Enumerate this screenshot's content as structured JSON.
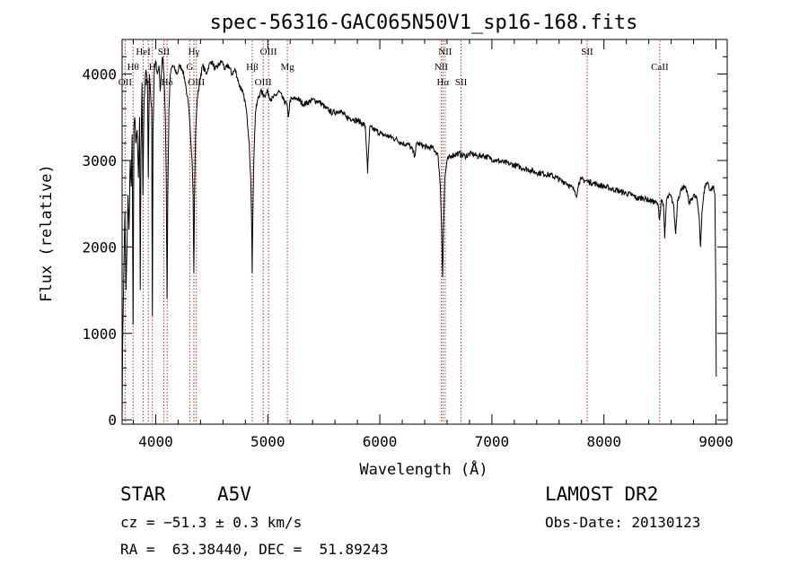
{
  "chart_data": {
    "type": "line",
    "title": "spec-56316-GAC065N50V1_sp16-168.fits",
    "xlabel": "Wavelength (Å)",
    "ylabel": "Flux (relative)",
    "xlim": [
      3700,
      9100
    ],
    "ylim": [
      -50,
      4400
    ],
    "xticks": [
      4000,
      5000,
      6000,
      7000,
      8000,
      9000
    ],
    "yticks": [
      0,
      1000,
      2000,
      3000,
      4000
    ],
    "xtick_labels": [
      "4000",
      "5000",
      "6000",
      "7000",
      "8000",
      "9000"
    ],
    "ytick_labels": [
      "0",
      "1000",
      "2000",
      "3000",
      "4000"
    ],
    "grid": false,
    "line_color": "#000000",
    "marker_color": "#b03030",
    "spectrum_knots": [
      [
        3700,
        0
      ],
      [
        3705,
        900
      ],
      [
        3715,
        1700
      ],
      [
        3725,
        2400
      ],
      [
        3735,
        1500
      ],
      [
        3745,
        2100
      ],
      [
        3752,
        2600
      ],
      [
        3762,
        2200
      ],
      [
        3772,
        3000
      ],
      [
        3782,
        2700
      ],
      [
        3790,
        3300
      ],
      [
        3798,
        1100
      ],
      [
        3806,
        3400
      ],
      [
        3814,
        3500
      ],
      [
        3822,
        3200
      ],
      [
        3834,
        3350
      ],
      [
        3846,
        2800
      ],
      [
        3856,
        3500
      ],
      [
        3862,
        1500
      ],
      [
        3868,
        3100
      ],
      [
        3878,
        3900
      ],
      [
        3886,
        2600
      ],
      [
        3896,
        3700
      ],
      [
        3912,
        4050
      ],
      [
        3926,
        3900
      ],
      [
        3934,
        2800
      ],
      [
        3944,
        4000
      ],
      [
        3956,
        3700
      ],
      [
        3964,
        3600
      ],
      [
        3970,
        1200
      ],
      [
        3976,
        3300
      ],
      [
        3986,
        4000
      ],
      [
        4000,
        4150
      ],
      [
        4016,
        4000
      ],
      [
        4030,
        4100
      ],
      [
        4040,
        3800
      ],
      [
        4060,
        4200
      ],
      [
        4074,
        4000
      ],
      [
        4086,
        3500
      ],
      [
        4094,
        2800
      ],
      [
        4101,
        1400
      ],
      [
        4108,
        2600
      ],
      [
        4118,
        3600
      ],
      [
        4130,
        4000
      ],
      [
        4150,
        4100
      ],
      [
        4170,
        4050
      ],
      [
        4190,
        4000
      ],
      [
        4215,
        4100
      ],
      [
        4240,
        4050
      ],
      [
        4265,
        3900
      ],
      [
        4280,
        3750
      ],
      [
        4295,
        3600
      ],
      [
        4310,
        3300
      ],
      [
        4325,
        3000
      ],
      [
        4334,
        2600
      ],
      [
        4340,
        1700
      ],
      [
        4346,
        2500
      ],
      [
        4355,
        3300
      ],
      [
        4370,
        3700
      ],
      [
        4395,
        3950
      ],
      [
        4420,
        4100
      ],
      [
        4450,
        4000
      ],
      [
        4475,
        4100
      ],
      [
        4500,
        4150
      ],
      [
        4530,
        4050
      ],
      [
        4560,
        4100
      ],
      [
        4590,
        4150
      ],
      [
        4620,
        4050
      ],
      [
        4650,
        4100
      ],
      [
        4680,
        4000
      ],
      [
        4710,
        4050
      ],
      [
        4740,
        3900
      ],
      [
        4770,
        3800
      ],
      [
        4795,
        3700
      ],
      [
        4815,
        3500
      ],
      [
        4835,
        3200
      ],
      [
        4850,
        2700
      ],
      [
        4858,
        2100
      ],
      [
        4861,
        1700
      ],
      [
        4865,
        2200
      ],
      [
        4875,
        3000
      ],
      [
        4890,
        3550
      ],
      [
        4910,
        3700
      ],
      [
        4935,
        3800
      ],
      [
        4970,
        3750
      ],
      [
        5000,
        3800
      ],
      [
        5030,
        3700
      ],
      [
        5070,
        3750
      ],
      [
        5100,
        3800
      ],
      [
        5140,
        3700
      ],
      [
        5170,
        3650
      ],
      [
        5183,
        3500
      ],
      [
        5200,
        3700
      ],
      [
        5260,
        3720
      ],
      [
        5320,
        3650
      ],
      [
        5400,
        3700
      ],
      [
        5460,
        3680
      ],
      [
        5520,
        3600
      ],
      [
        5580,
        3550
      ],
      [
        5640,
        3580
      ],
      [
        5700,
        3500
      ],
      [
        5760,
        3480
      ],
      [
        5820,
        3450
      ],
      [
        5870,
        3400
      ],
      [
        5885,
        3050
      ],
      [
        5891,
        2850
      ],
      [
        5897,
        3050
      ],
      [
        5910,
        3380
      ],
      [
        5960,
        3350
      ],
      [
        6020,
        3300
      ],
      [
        6080,
        3280
      ],
      [
        6140,
        3250
      ],
      [
        6200,
        3200
      ],
      [
        6260,
        3180
      ],
      [
        6300,
        3100
      ],
      [
        6310,
        3050
      ],
      [
        6330,
        3200
      ],
      [
        6370,
        3180
      ],
      [
        6420,
        3150
      ],
      [
        6470,
        3150
      ],
      [
        6500,
        3100
      ],
      [
        6520,
        3050
      ],
      [
        6540,
        2700
      ],
      [
        6552,
        2200
      ],
      [
        6560,
        1650
      ],
      [
        6568,
        2200
      ],
      [
        6580,
        2800
      ],
      [
        6600,
        3000
      ],
      [
        6640,
        3060
      ],
      [
        6700,
        3080
      ],
      [
        6760,
        3050
      ],
      [
        6820,
        3080
      ],
      [
        6870,
        3050
      ],
      [
        6920,
        3060
      ],
      [
        6980,
        3030
      ],
      [
        7040,
        3000
      ],
      [
        7100,
        2980
      ],
      [
        7160,
        2960
      ],
      [
        7220,
        2940
      ],
      [
        7280,
        2910
      ],
      [
        7340,
        2890
      ],
      [
        7400,
        2860
      ],
      [
        7460,
        2850
      ],
      [
        7520,
        2830
      ],
      [
        7580,
        2800
      ],
      [
        7620,
        2760
      ],
      [
        7660,
        2750
      ],
      [
        7700,
        2700
      ],
      [
        7740,
        2650
      ],
      [
        7760,
        2600
      ],
      [
        7775,
        2750
      ],
      [
        7800,
        2780
      ],
      [
        7850,
        2760
      ],
      [
        7900,
        2740
      ],
      [
        7950,
        2720
      ],
      [
        8000,
        2700
      ],
      [
        8050,
        2680
      ],
      [
        8100,
        2660
      ],
      [
        8150,
        2640
      ],
      [
        8200,
        2620
      ],
      [
        8250,
        2600
      ],
      [
        8300,
        2560
      ],
      [
        8350,
        2570
      ],
      [
        8400,
        2540
      ],
      [
        8450,
        2520
      ],
      [
        8480,
        2500
      ],
      [
        8497,
        2320
      ],
      [
        8512,
        2550
      ],
      [
        8530,
        2500
      ],
      [
        8542,
        2100
      ],
      [
        8558,
        2550
      ],
      [
        8590,
        2600
      ],
      [
        8620,
        2500
      ],
      [
        8640,
        2150
      ],
      [
        8658,
        2550
      ],
      [
        8700,
        2700
      ],
      [
        8740,
        2650
      ],
      [
        8760,
        2500
      ],
      [
        8780,
        2550
      ],
      [
        8800,
        2600
      ],
      [
        8830,
        2550
      ],
      [
        8850,
        2350
      ],
      [
        8862,
        2000
      ],
      [
        8875,
        2400
      ],
      [
        8900,
        2700
      ],
      [
        8925,
        2750
      ],
      [
        8950,
        2650
      ],
      [
        8975,
        2700
      ],
      [
        8990,
        2600
      ],
      [
        8998,
        1500
      ],
      [
        9002,
        500
      ]
    ],
    "line_markers": [
      {
        "wavelength": 3727,
        "label": "OII",
        "row": 3
      },
      {
        "wavelength": 3798,
        "label": "Hθ",
        "row": 2
      },
      {
        "wavelength": 3889,
        "label": "HeI",
        "row": 1
      },
      {
        "wavelength": 3934,
        "label": "K",
        "row": 3
      },
      {
        "wavelength": 3970,
        "label": "H",
        "row": 2
      },
      {
        "wavelength": 4072,
        "label": "SII",
        "row": 1
      },
      {
        "wavelength": 4102,
        "label": "Hδ",
        "row": 3
      },
      {
        "wavelength": 4304,
        "label": "G",
        "row": 2
      },
      {
        "wavelength": 4341,
        "label": "Hγ",
        "row": 1
      },
      {
        "wavelength": 4363,
        "label": "OIII",
        "row": 3
      },
      {
        "wavelength": 4861,
        "label": "Hβ",
        "row": 2
      },
      {
        "wavelength": 4959,
        "label": "OIII",
        "row": 3
      },
      {
        "wavelength": 5007,
        "label": "OIII",
        "row": 1
      },
      {
        "wavelength": 5175,
        "label": "Mg",
        "row": 2
      },
      {
        "wavelength": 6548,
        "label": "NII",
        "row": 2
      },
      {
        "wavelength": 6563,
        "label": "Hα",
        "row": 3
      },
      {
        "wavelength": 6583,
        "label": "NII",
        "row": 1
      },
      {
        "wavelength": 6725,
        "label": "SII",
        "row": 3
      },
      {
        "wavelength": 7850,
        "label": "SII",
        "row": 1
      },
      {
        "wavelength": 8498,
        "label": "CaII",
        "row": 2
      }
    ]
  },
  "info": {
    "class_label": "STAR",
    "subclass": "A5V",
    "survey": "LAMOST DR2",
    "redshift": "cz = −51.3 ± 0.3 km/s",
    "obs_date": "Obs-Date: 20130123",
    "coords": "RA =  63.38440, DEC =  51.89243"
  }
}
